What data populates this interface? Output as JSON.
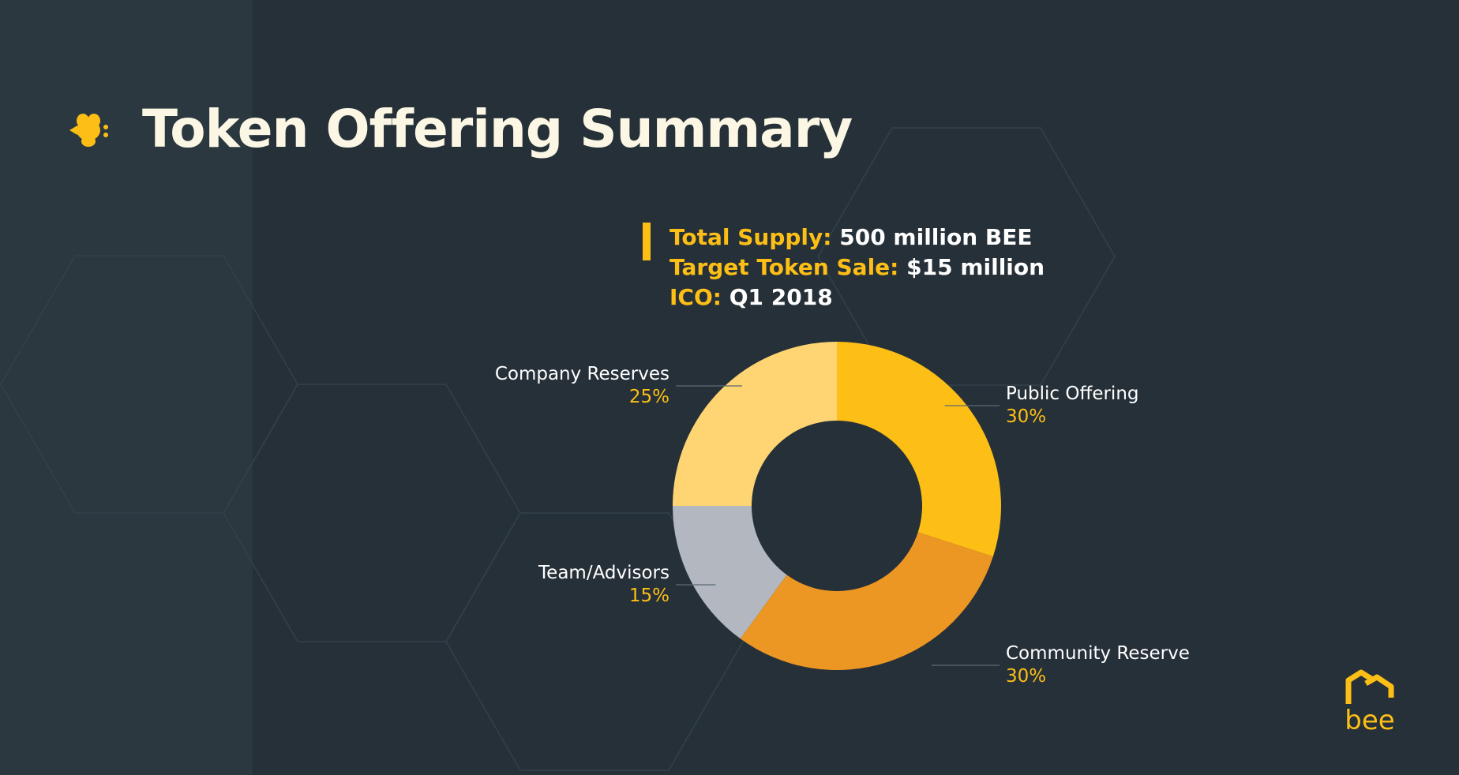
{
  "slide": {
    "title": "Token Offering Summary",
    "accent_color": "#fdbf16",
    "title_color": "#fbf7e4",
    "background_color": "#263038",
    "icon": "bee-icon"
  },
  "facts": [
    {
      "key": "Total Supply:",
      "value": "500 million BEE"
    },
    {
      "key": "Target Token Sale:",
      "value": "$15 million"
    },
    {
      "key": "ICO:",
      "value": "Q1 2018"
    }
  ],
  "chart_data": {
    "type": "pie",
    "donut": true,
    "categories": [
      "Public Offering",
      "Community Reserve",
      "Team/Advisors",
      "Company Reserves"
    ],
    "values": [
      30,
      30,
      15,
      25
    ],
    "labels": [
      "30%",
      "30%",
      "15%",
      "25%"
    ],
    "colors": [
      "#fdbf16",
      "#ec9623",
      "#b3b8c0",
      "#fed572"
    ]
  },
  "logo": {
    "text": "bee",
    "icon": "house-logo-icon"
  }
}
